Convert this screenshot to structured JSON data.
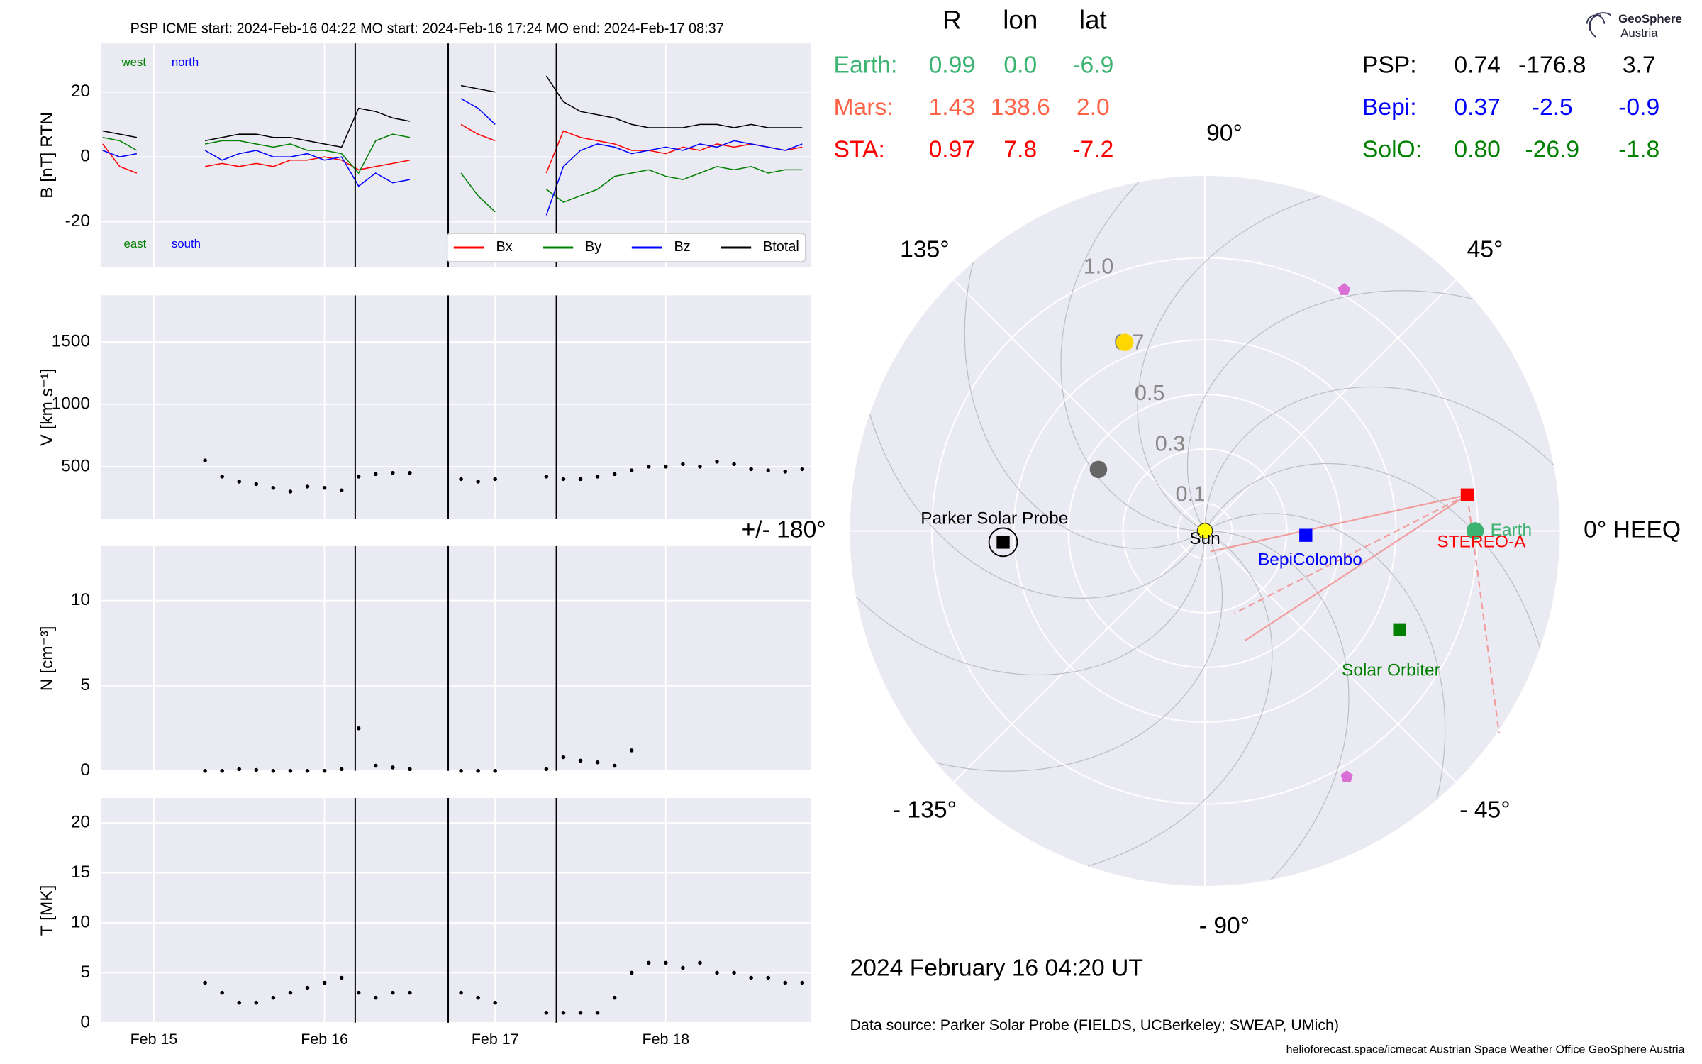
{
  "header": {
    "title": "PSP    ICME start: 2024-Feb-16 04:22   MO start: 2024-Feb-16 17:24   MO end: 2024-Feb-17 08:37",
    "logo": "GeoSphere",
    "logo_sub": "Austria"
  },
  "events": [
    16.18,
    16.725,
    17.359
  ],
  "positions": {
    "columns": [
      "R",
      "lon",
      "lat"
    ],
    "rows": [
      {
        "name": "Earth:",
        "color": "#3cb371",
        "cells": [
          "0.99",
          "0.0",
          "-6.9"
        ]
      },
      {
        "name": "Mars:",
        "color": "#ff6347",
        "cells": [
          "1.43",
          "138.6",
          "2.0"
        ]
      },
      {
        "name": "STA:",
        "color": "#ff0000",
        "cells": [
          "0.97",
          "7.8",
          "-7.2"
        ]
      },
      {
        "name": "PSP:",
        "color": "#000000",
        "cells": [
          "0.74",
          "-176.8",
          "3.7"
        ]
      },
      {
        "name": "Bepi:",
        "color": "#0000ff",
        "cells": [
          "0.37",
          "-2.5",
          "-0.9"
        ]
      },
      {
        "name": "SolO:",
        "color": "#008000",
        "cells": [
          "0.80",
          "-26.9",
          "-1.8"
        ]
      }
    ]
  },
  "footer": {
    "date": "2024 February 16  04:20 UT",
    "source": "Data source: Parker Solar Probe (FIELDS, UCBerkeley; SWEAP, UMich)",
    "credits": "helioforecast.space/icmecat   Austrian Space Weather Office   GeoSphere Austria"
  },
  "chart_data": [
    {
      "type": "line",
      "ylabel": "B [nT] RTN",
      "xlim": [
        14.69,
        18.85
      ],
      "xticks": [
        15,
        16,
        17,
        18
      ],
      "ylim": [
        -34,
        35
      ],
      "yticks": [
        -20,
        0,
        20
      ],
      "grid": true,
      "legend": "lower right",
      "annotations": [
        {
          "text": "west",
          "color": "#008000"
        },
        {
          "text": "north",
          "color": "#0000ff"
        },
        {
          "text": "east",
          "color": "#008000"
        },
        {
          "text": "south",
          "color": "#0000ff"
        }
      ],
      "x": [
        14.7,
        14.8,
        14.9,
        15.0,
        15.1,
        15.2,
        15.3,
        15.4,
        15.5,
        15.6,
        15.7,
        15.8,
        15.9,
        16.0,
        16.1,
        16.2,
        16.3,
        16.4,
        16.5,
        16.6,
        16.7,
        16.8,
        16.9,
        17.0,
        17.1,
        17.2,
        17.3,
        17.4,
        17.5,
        17.6,
        17.7,
        17.8,
        17.9,
        18.0,
        18.1,
        18.2,
        18.3,
        18.4,
        18.5,
        18.6,
        18.7,
        18.8
      ],
      "series": [
        {
          "name": "Bx",
          "color": "#ff0000",
          "values": [
            4,
            -3,
            -5,
            null,
            null,
            null,
            -3,
            -2,
            -3,
            -2,
            -3,
            -1,
            -1,
            0,
            -1,
            -4,
            -3,
            -2,
            -1,
            null,
            null,
            10,
            7,
            5,
            null,
            null,
            -5,
            8,
            6,
            5,
            4,
            2,
            2,
            1,
            3,
            2,
            4,
            3,
            4,
            3,
            2,
            3
          ]
        },
        {
          "name": "By",
          "color": "#008000",
          "values": [
            6,
            5,
            2,
            null,
            null,
            null,
            4,
            5,
            5,
            4,
            3,
            4,
            2,
            2,
            1,
            -5,
            5,
            7,
            6,
            null,
            null,
            -5,
            -12,
            -17,
            null,
            null,
            -10,
            -14,
            -12,
            -10,
            -6,
            -5,
            -4,
            -6,
            -7,
            -5,
            -3,
            -4,
            -3,
            -5,
            -4,
            -4
          ]
        },
        {
          "name": "Bz",
          "color": "#0000ff",
          "values": [
            2,
            0,
            1,
            null,
            null,
            null,
            2,
            -1,
            1,
            2,
            0,
            0,
            1,
            -1,
            0,
            -9,
            -5,
            -8,
            -7,
            null,
            null,
            18,
            15,
            10,
            null,
            null,
            -18,
            -3,
            2,
            4,
            3,
            1,
            2,
            3,
            2,
            4,
            3,
            5,
            4,
            3,
            2,
            4
          ]
        },
        {
          "name": "Btotal",
          "color": "#000000",
          "values": [
            8,
            7,
            6,
            null,
            null,
            null,
            5,
            6,
            7,
            7,
            6,
            6,
            5,
            4,
            3,
            15,
            14,
            12,
            11,
            null,
            null,
            22,
            21,
            20,
            null,
            null,
            25,
            17,
            14,
            13,
            12,
            10,
            9,
            9,
            9,
            10,
            10,
            9,
            10,
            9,
            9,
            9
          ]
        }
      ]
    },
    {
      "type": "scatter",
      "ylabel": "V [km s⁻¹]",
      "xlim": [
        14.69,
        18.85
      ],
      "xticks": [
        15,
        16,
        17,
        18
      ],
      "ylim": [
        80,
        1875
      ],
      "yticks": [
        500,
        1000,
        1500
      ],
      "grid": true,
      "color": "#000000",
      "x": [
        14.7,
        14.8,
        14.9,
        15.0,
        15.1,
        15.2,
        15.3,
        15.4,
        15.5,
        15.6,
        15.7,
        15.8,
        15.9,
        16.0,
        16.1,
        16.2,
        16.3,
        16.4,
        16.5,
        16.6,
        16.7,
        16.8,
        16.9,
        17.0,
        17.1,
        17.2,
        17.3,
        17.4,
        17.5,
        17.6,
        17.7,
        17.8,
        17.9,
        18.0,
        18.1,
        18.2,
        18.3,
        18.4,
        18.5,
        18.6,
        18.7,
        18.8
      ],
      "values": [
        null,
        null,
        null,
        null,
        null,
        null,
        550,
        420,
        380,
        360,
        330,
        300,
        340,
        330,
        310,
        420,
        440,
        450,
        450,
        null,
        null,
        400,
        380,
        400,
        null,
        null,
        420,
        400,
        400,
        420,
        440,
        470,
        500,
        500,
        520,
        500,
        540,
        520,
        480,
        470,
        460,
        480
      ]
    },
    {
      "type": "scatter",
      "ylabel": "N [cm⁻³]",
      "xlim": [
        14.69,
        18.85
      ],
      "xticks": [
        15,
        16,
        17,
        18
      ],
      "ylim": [
        0,
        13.2
      ],
      "yticks": [
        0,
        5,
        10
      ],
      "grid": true,
      "color": "#000000",
      "x": [
        14.7,
        14.8,
        14.9,
        15.0,
        15.1,
        15.2,
        15.3,
        15.4,
        15.5,
        15.6,
        15.7,
        15.8,
        15.9,
        16.0,
        16.1,
        16.2,
        16.3,
        16.4,
        16.5,
        16.6,
        16.7,
        16.8,
        16.9,
        17.0,
        17.1,
        17.2,
        17.3,
        17.4,
        17.5,
        17.6,
        17.7,
        17.8,
        17.9,
        18.0,
        18.1,
        18.2,
        18.3,
        18.4,
        18.5,
        18.6,
        18.7,
        18.8
      ],
      "values": [
        null,
        null,
        null,
        null,
        null,
        null,
        0,
        0,
        0.1,
        0.05,
        0,
        0,
        0,
        0,
        0.1,
        2.5,
        0.3,
        0.2,
        0.1,
        null,
        null,
        0,
        0,
        0,
        null,
        null,
        0.1,
        0.8,
        0.6,
        0.5,
        0.3,
        1.2,
        null,
        null,
        null,
        null,
        null,
        null,
        null,
        null,
        null,
        null
      ]
    },
    {
      "type": "scatter",
      "ylabel": "T [MK]",
      "xlim": [
        14.69,
        18.85
      ],
      "xticks": [
        {
          "value": 15,
          "label": "Feb 15"
        },
        {
          "value": 16,
          "label": "Feb 16"
        },
        {
          "value": 17,
          "label": "Feb 17"
        },
        {
          "value": 18,
          "label": "Feb 18"
        }
      ],
      "ylim": [
        0,
        22.5
      ],
      "yticks": [
        0,
        5,
        10,
        15,
        20
      ],
      "grid": true,
      "color": "#000000",
      "x": [
        14.7,
        14.8,
        14.9,
        15.0,
        15.1,
        15.2,
        15.3,
        15.4,
        15.5,
        15.6,
        15.7,
        15.8,
        15.9,
        16.0,
        16.1,
        16.2,
        16.3,
        16.4,
        16.5,
        16.6,
        16.7,
        16.8,
        16.9,
        17.0,
        17.1,
        17.2,
        17.3,
        17.4,
        17.5,
        17.6,
        17.7,
        17.8,
        17.9,
        18.0,
        18.1,
        18.2,
        18.3,
        18.4,
        18.5,
        18.6,
        18.7,
        18.8
      ],
      "values": [
        null,
        null,
        null,
        null,
        null,
        null,
        4,
        3,
        2,
        2,
        2.5,
        3,
        3.5,
        4,
        4.5,
        3,
        2.5,
        3,
        3,
        null,
        null,
        3,
        2.5,
        2,
        null,
        null,
        1,
        1,
        1,
        1,
        2.5,
        5,
        6,
        6,
        5.5,
        6,
        5,
        5,
        4.5,
        4.5,
        4,
        4
      ]
    },
    {
      "type": "polar",
      "rlim": [
        0,
        1.3
      ],
      "rticks": [
        0.1,
        0.3,
        0.5,
        0.7,
        {
          "value": 1.0,
          "label": "1.0"
        }
      ],
      "thetaticks": [
        {
          "value": 0,
          "label": "0° HEEQ"
        },
        {
          "value": 45,
          "label": "45°"
        },
        {
          "value": 90,
          "label": "90°"
        },
        {
          "value": 135,
          "label": "135°"
        },
        {
          "value": 180,
          "label": "+/- 180°"
        },
        {
          "value": -135,
          "label": "- 135°"
        },
        {
          "value": -90,
          "label": "- 90°"
        },
        {
          "value": -45,
          "label": "- 45°"
        }
      ],
      "points": [
        {
          "name": "Sun",
          "r": 0,
          "lon": 0,
          "color": "#ffff00",
          "marker": "circle",
          "label_color": "#000000"
        },
        {
          "name": "Earth",
          "r": 0.99,
          "lon": 0.0,
          "color": "#3cb371",
          "marker": "circle",
          "label_color": "#3cb371"
        },
        {
          "name": "STEREO-A",
          "r": 0.97,
          "lon": 7.8,
          "color": "#ff0000",
          "marker": "square",
          "label_color": "#ff0000"
        },
        {
          "name": "BepiColombo",
          "r": 0.37,
          "lon": -2.5,
          "color": "#0000ff",
          "marker": "square",
          "label_color": "#0000ff"
        },
        {
          "name": "Solar Orbiter",
          "r": 0.8,
          "lon": -26.9,
          "color": "#008000",
          "marker": "square",
          "label_color": "#008000"
        },
        {
          "name": "Parker Solar Probe",
          "r": 0.74,
          "lon": -176.8,
          "color": "#000000",
          "marker": "ring-square",
          "label_color": "#000000"
        },
        {
          "r": 0.75,
          "lon": 113,
          "color": "#ffd700",
          "marker": "circle"
        },
        {
          "r": 0.45,
          "lon": 150,
          "color": "#666666",
          "marker": "circle"
        },
        {
          "r": 1.02,
          "lon": 60,
          "color": "#da70d6",
          "marker": "pentagon"
        },
        {
          "r": 1.04,
          "lon": -60,
          "color": "#da70d6",
          "marker": "pentagon"
        }
      ]
    }
  ]
}
